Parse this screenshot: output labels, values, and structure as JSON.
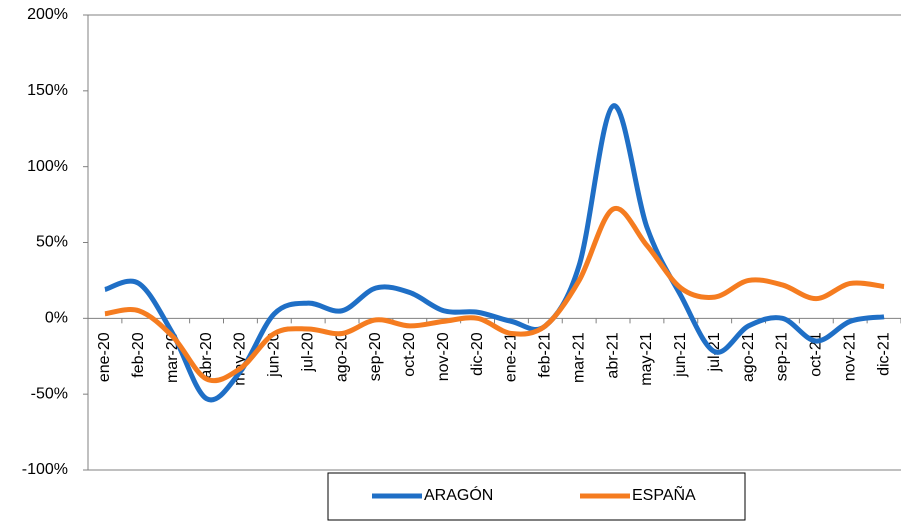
{
  "chart_data": {
    "type": "line",
    "categories": [
      "ene-20",
      "feb-20",
      "mar-20",
      "abr-20",
      "may-20",
      "jun-20",
      "jul-20",
      "ago-20",
      "sep-20",
      "oct-20",
      "nov-20",
      "dic-20",
      "ene-21",
      "feb-21",
      "mar-21",
      "abr-21",
      "may-21",
      "jun-21",
      "jul-21",
      "ago-21",
      "sep-21",
      "oct-21",
      "nov-21",
      "dic-21"
    ],
    "series": [
      {
        "name": "ARAGÓN",
        "color": "#1f6fc6",
        "values": [
          19,
          23,
          -10,
          -53,
          -35,
          3,
          10,
          5,
          20,
          17,
          5,
          4,
          -2,
          -5,
          35,
          140,
          60,
          15,
          -22,
          -5,
          0,
          -15,
          -2,
          1
        ]
      },
      {
        "name": "ESPAÑA",
        "color": "#f57c20",
        "values": [
          3,
          5,
          -12,
          -40,
          -33,
          -10,
          -7,
          -10,
          -1,
          -5,
          -2,
          0,
          -10,
          -5,
          25,
          72,
          48,
          20,
          14,
          25,
          22,
          13,
          23,
          21
        ]
      }
    ],
    "ylim": [
      -100,
      200
    ],
    "yticks": [
      {
        "value": -100,
        "label": "-100%"
      },
      {
        "value": -50,
        "label": "-50%"
      },
      {
        "value": 0,
        "label": "0%"
      },
      {
        "value": 50,
        "label": "50%"
      },
      {
        "value": 100,
        "label": "100%"
      },
      {
        "value": 150,
        "label": "150%"
      },
      {
        "value": 200,
        "label": "200%"
      }
    ],
    "legend": "bottom"
  }
}
